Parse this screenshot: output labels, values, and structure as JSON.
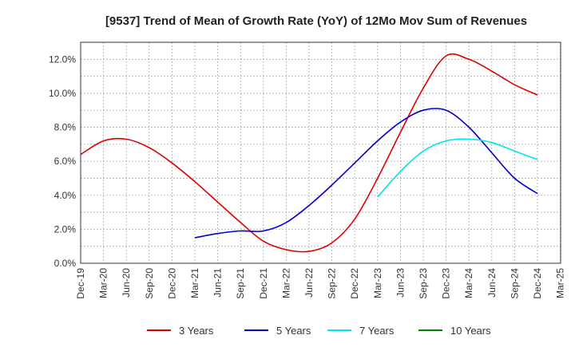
{
  "chart_data": {
    "type": "line",
    "title": "[9537]  Trend of Mean of Growth Rate (YoY) of 12Mo Mov Sum of Revenues",
    "xlabel": "",
    "ylabel": "",
    "ylim": [
      0,
      13
    ],
    "y_ticks": [
      0,
      2,
      4,
      6,
      8,
      10,
      12
    ],
    "y_tick_labels": [
      "0.0%",
      "2.0%",
      "4.0%",
      "6.0%",
      "8.0%",
      "10.0%",
      "12.0%"
    ],
    "x_tick_labels": [
      "Dec-19",
      "Mar-20",
      "Jun-20",
      "Sep-20",
      "Dec-20",
      "Mar-21",
      "Jun-21",
      "Sep-21",
      "Dec-21",
      "Mar-22",
      "Jun-22",
      "Sep-22",
      "Dec-22",
      "Mar-23",
      "Jun-23",
      "Sep-23",
      "Dec-23",
      "Mar-24",
      "Jun-24",
      "Sep-24",
      "Dec-24",
      "Mar-25"
    ],
    "grid": true,
    "legend_position": "bottom",
    "series": [
      {
        "name": "3 Years",
        "color": "#dd0000",
        "x_index": [
          0,
          1,
          2,
          3,
          4,
          5,
          6,
          7,
          8,
          9,
          10,
          11,
          12,
          13,
          14,
          15,
          16,
          17,
          18,
          19,
          20
        ],
        "values": [
          6.4,
          7.2,
          7.3,
          6.8,
          5.9,
          4.8,
          3.6,
          2.4,
          1.3,
          0.8,
          0.7,
          1.2,
          2.6,
          5.0,
          7.7,
          10.3,
          12.2,
          12.0,
          11.3,
          10.5,
          9.9
        ]
      },
      {
        "name": "5 Years",
        "color": "#0000cc",
        "x_index": [
          5,
          6,
          7,
          8,
          9,
          10,
          11,
          12,
          13,
          14,
          15,
          16,
          17,
          18,
          19,
          20
        ],
        "values": [
          1.5,
          1.75,
          1.9,
          1.9,
          2.4,
          3.4,
          4.6,
          5.9,
          7.2,
          8.3,
          9.0,
          9.0,
          8.0,
          6.5,
          5.0,
          4.1
        ]
      },
      {
        "name": "7 Years",
        "color": "#00e5e5",
        "x_index": [
          13,
          14,
          15,
          16,
          17,
          18,
          19,
          20
        ],
        "values": [
          3.9,
          5.4,
          6.6,
          7.2,
          7.3,
          7.1,
          6.6,
          6.1
        ]
      },
      {
        "name": "10 Years",
        "color": "#008000",
        "x_index": [],
        "values": []
      }
    ]
  }
}
